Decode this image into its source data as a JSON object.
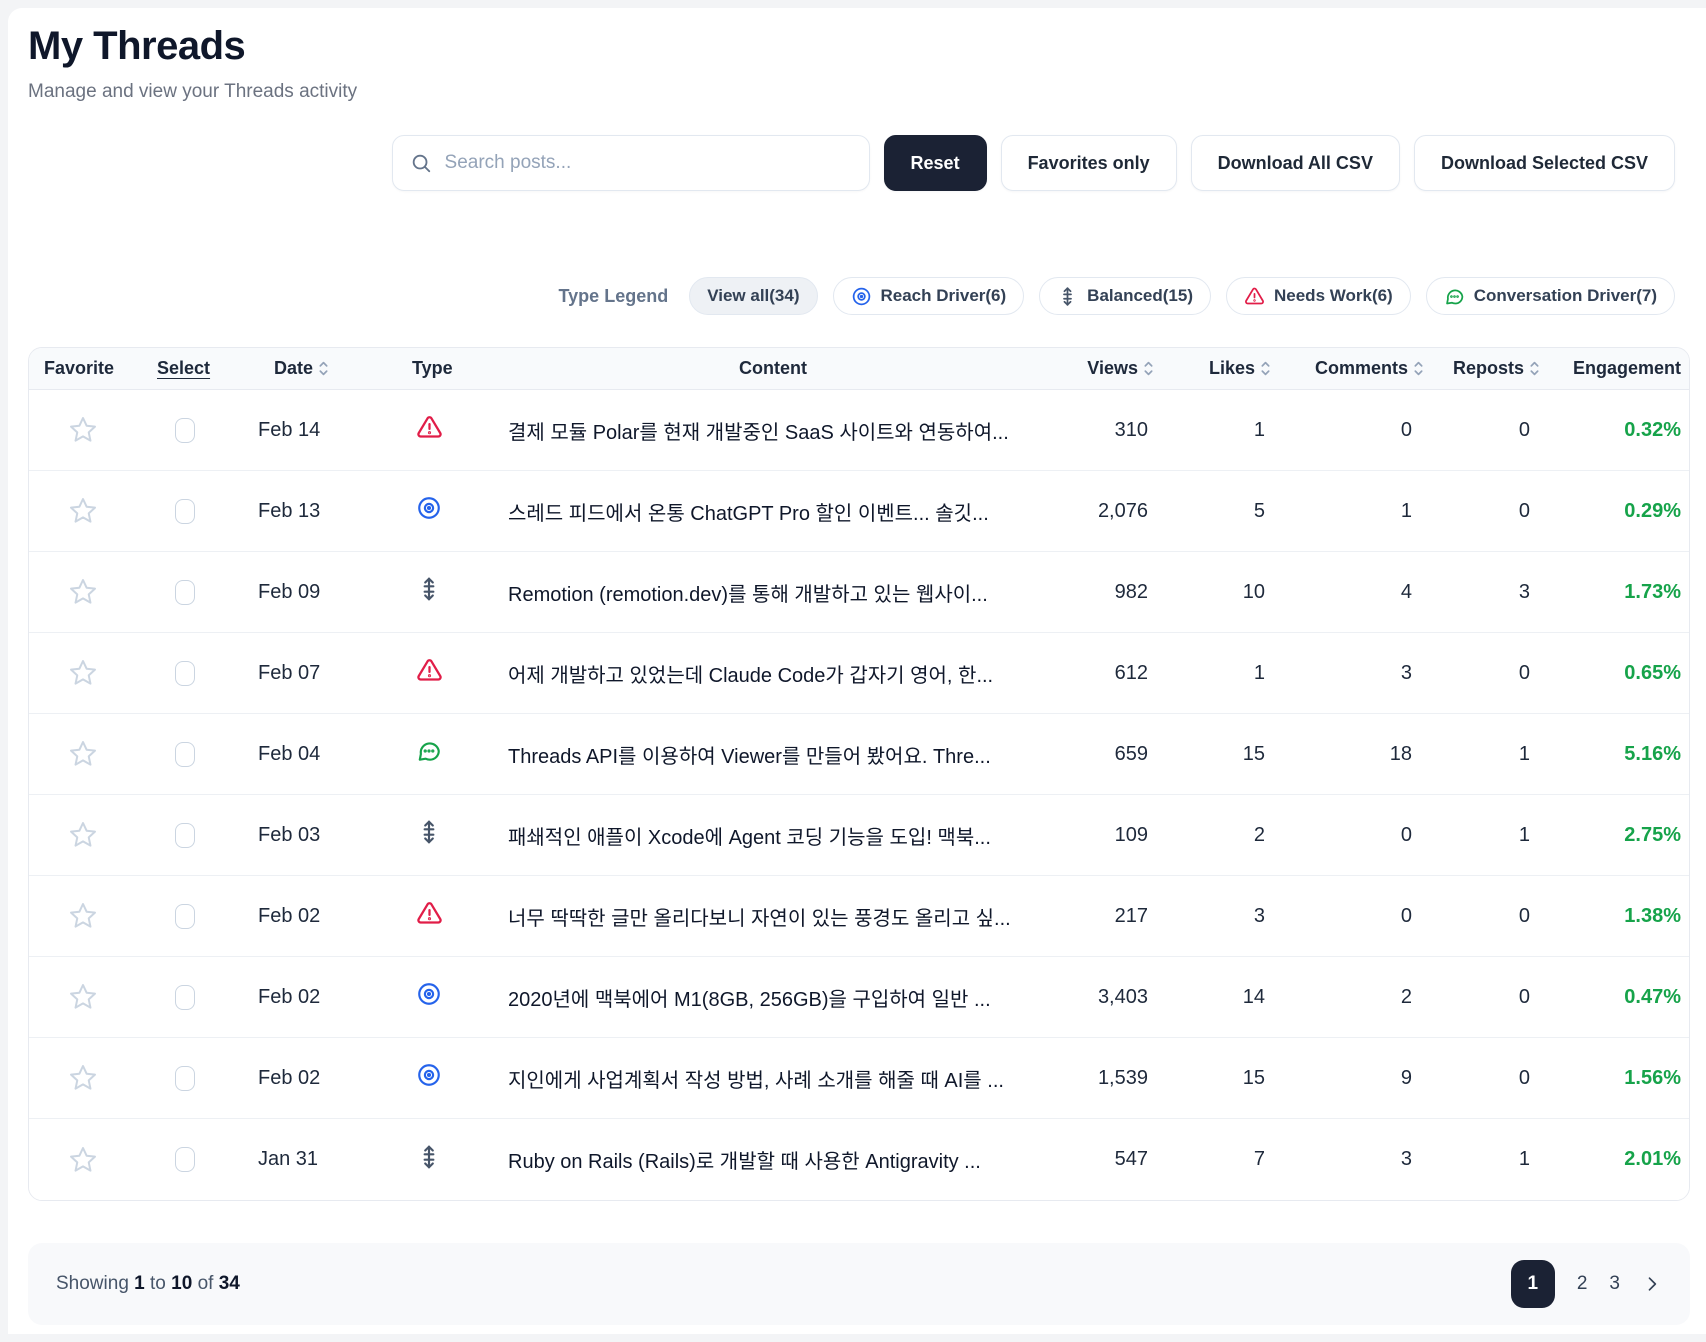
{
  "page": {
    "title": "My Threads",
    "subtitle": "Manage and view your Threads activity"
  },
  "controls": {
    "search_placeholder": "Search posts...",
    "search_value": "",
    "reset_label": "Reset",
    "favorites_only_label": "Favorites only",
    "download_all_label": "Download All CSV",
    "download_selected_label": "Download Selected CSV"
  },
  "legend": {
    "label": "Type Legend",
    "pills": [
      {
        "label": "View all(34)",
        "icon": "none",
        "active": true
      },
      {
        "label": "Reach Driver(6)",
        "icon": "target-icon",
        "color": "#2563eb"
      },
      {
        "label": "Balanced(15)",
        "icon": "vertical-arrows-icon",
        "color": "#475569"
      },
      {
        "label": "Needs Work(6)",
        "icon": "alert-triangle-icon",
        "color": "#e11d48"
      },
      {
        "label": "Conversation Driver(7)",
        "icon": "chat-bubble-icon",
        "color": "#16a34a"
      }
    ]
  },
  "table": {
    "columns": [
      {
        "label": "Favorite",
        "sortable": false
      },
      {
        "label": "Select",
        "sortable": false
      },
      {
        "label": "Date",
        "sortable": true
      },
      {
        "label": "Type",
        "sortable": false
      },
      {
        "label": "Content",
        "sortable": false
      },
      {
        "label": "Views",
        "sortable": true
      },
      {
        "label": "Likes",
        "sortable": true
      },
      {
        "label": "Comments",
        "sortable": true
      },
      {
        "label": "Reposts",
        "sortable": true
      },
      {
        "label": "Engagement",
        "sortable": false
      }
    ],
    "rows": [
      {
        "date": "Feb 14",
        "type": "needs-work",
        "content": "결제 모듈 Polar를 현재 개발중인 SaaS 사이트와 연동하여...",
        "views": "310",
        "likes": "1",
        "comments": "0",
        "reposts": "0",
        "engagement": "0.32%"
      },
      {
        "date": "Feb 13",
        "type": "reach-driver",
        "content": "스레드 피드에서 온통 ChatGPT Pro 할인 이벤트... 솔깃...",
        "views": "2,076",
        "likes": "5",
        "comments": "1",
        "reposts": "0",
        "engagement": "0.29%"
      },
      {
        "date": "Feb 09",
        "type": "balanced",
        "content": "Remotion (remotion.dev)를 통해 개발하고 있는 웹사이...",
        "views": "982",
        "likes": "10",
        "comments": "4",
        "reposts": "3",
        "engagement": "1.73%"
      },
      {
        "date": "Feb 07",
        "type": "needs-work",
        "content": "어제 개발하고 있었는데 Claude Code가 갑자기 영어, 한...",
        "views": "612",
        "likes": "1",
        "comments": "3",
        "reposts": "0",
        "engagement": "0.65%"
      },
      {
        "date": "Feb 04",
        "type": "conversation-driver",
        "content": "Threads API를 이용하여 Viewer를 만들어 봤어요. Thre...",
        "views": "659",
        "likes": "15",
        "comments": "18",
        "reposts": "1",
        "engagement": "5.16%"
      },
      {
        "date": "Feb 03",
        "type": "balanced",
        "content": "패쇄적인 애플이 Xcode에 Agent 코딩 기능을 도입! 맥북...",
        "views": "109",
        "likes": "2",
        "comments": "0",
        "reposts": "1",
        "engagement": "2.75%"
      },
      {
        "date": "Feb 02",
        "type": "needs-work",
        "content": "너무 딱딱한 글만 올리다보니 자연이 있는 풍경도 올리고 싶...",
        "views": "217",
        "likes": "3",
        "comments": "0",
        "reposts": "0",
        "engagement": "1.38%"
      },
      {
        "date": "Feb 02",
        "type": "reach-driver",
        "content": "2020년에 맥북에어 M1(8GB, 256GB)을 구입하여 일반 ...",
        "views": "3,403",
        "likes": "14",
        "comments": "2",
        "reposts": "0",
        "engagement": "0.47%"
      },
      {
        "date": "Feb 02",
        "type": "reach-driver",
        "content": "지인에게 사업계획서 작성 방법, 사례 소개를 해줄 때 AI를 ...",
        "views": "1,539",
        "likes": "15",
        "comments": "9",
        "reposts": "0",
        "engagement": "1.56%"
      },
      {
        "date": "Jan 31",
        "type": "balanced",
        "content": "Ruby on Rails (Rails)로 개발할 때 사용한 Antigravity ...",
        "views": "547",
        "likes": "7",
        "comments": "3",
        "reposts": "1",
        "engagement": "2.01%"
      }
    ]
  },
  "footer": {
    "showing": {
      "prefix": "Showing",
      "from": "1",
      "connector_to": "to",
      "to": "10",
      "connector_of": "of",
      "total": "34"
    },
    "pages": [
      "1",
      "2",
      "3"
    ],
    "active_page": "1"
  },
  "colors": {
    "reach_driver": "#2563eb",
    "balanced": "#475569",
    "needs_work": "#e11d48",
    "conversation_driver": "#16a34a",
    "engagement_green": "#16a34a",
    "dark_button": "#1b2234"
  }
}
